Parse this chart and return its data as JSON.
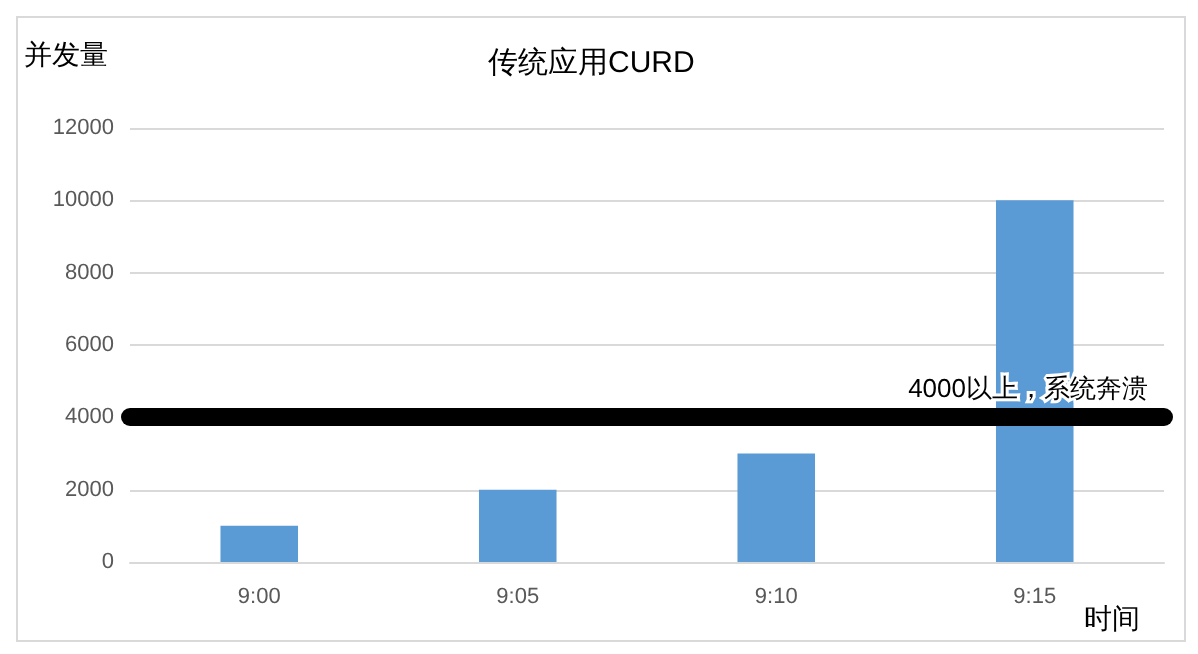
{
  "chart_data": {
    "type": "bar",
    "title": "传统应用CURD",
    "ylabel": "并发量",
    "xlabel": "时间",
    "categories": [
      "9:00",
      "9:05",
      "9:10",
      "9:15"
    ],
    "values": [
      1000,
      2000,
      3000,
      10000
    ],
    "color": "#5b9bd5",
    "ylim": [
      0,
      12000
    ],
    "yticks": [
      0,
      2000,
      4000,
      6000,
      8000,
      10000,
      12000
    ],
    "grid": "y",
    "ref_lines": [
      {
        "axis": "y",
        "value": 4000,
        "label": "4000以上，系统奔溃",
        "color": "#000000"
      }
    ]
  }
}
